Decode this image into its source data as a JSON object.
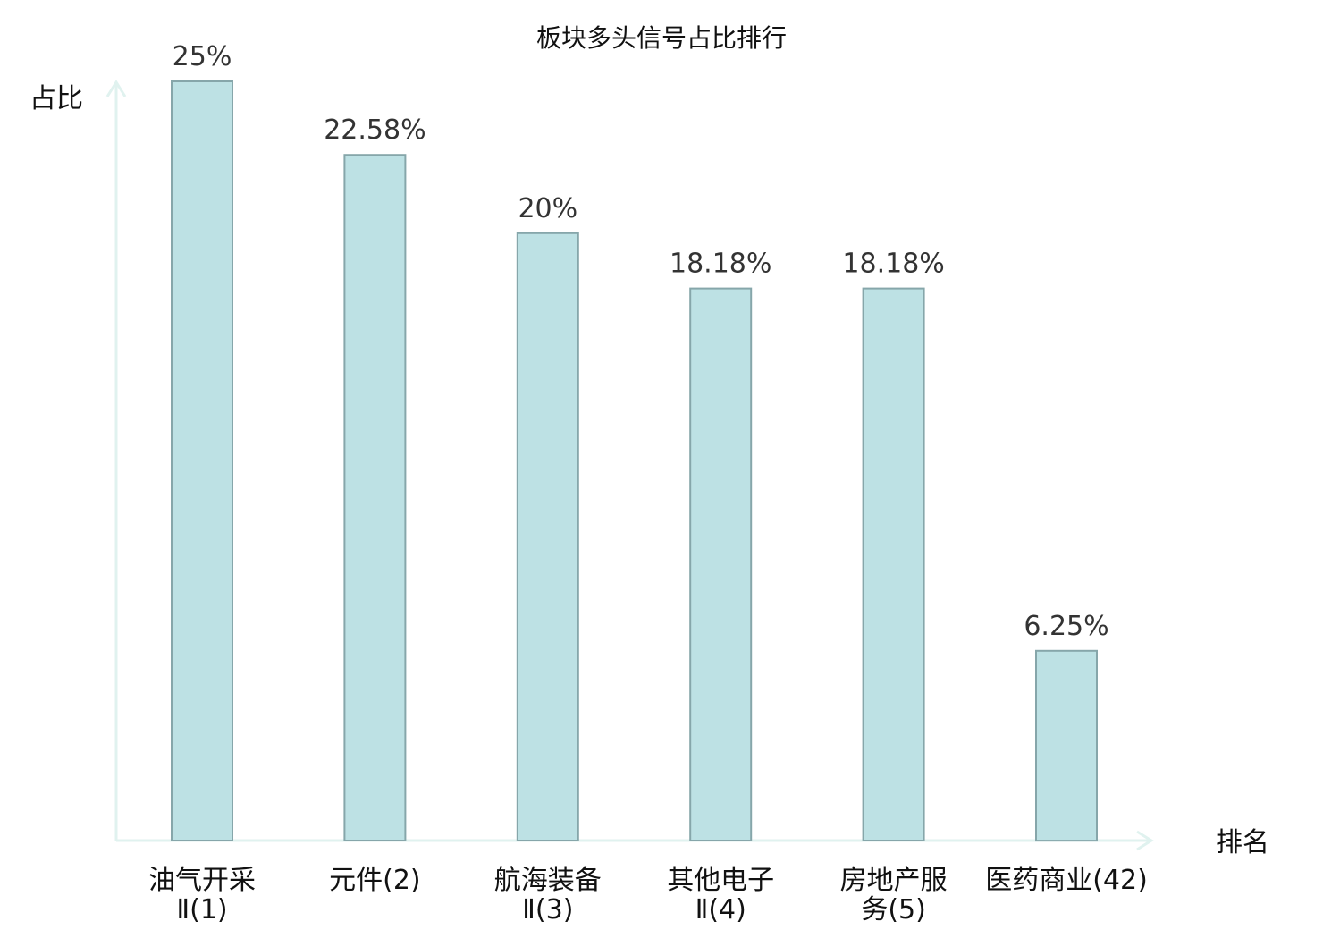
{
  "chart_data": {
    "type": "bar",
    "title": "板块多头信号占比排行",
    "ylabel": "占比",
    "xlabel": "排名",
    "categories": [
      [
        "油气开采",
        "Ⅱ(1)"
      ],
      [
        "元件(2)"
      ],
      [
        "航海装备",
        "Ⅱ(3)"
      ],
      [
        "其他电子",
        "Ⅱ(4)"
      ],
      [
        "房地产服",
        "务(5)"
      ],
      [
        "医药商业(42)"
      ]
    ],
    "values": [
      25,
      22.58,
      20,
      18.18,
      18.18,
      6.25
    ],
    "value_labels": [
      "25%",
      "22.58%",
      "20%",
      "18.18%",
      "18.18%",
      "6.25%"
    ],
    "highlight_index": 5,
    "ylim": [
      0,
      25
    ],
    "grid": false,
    "colors": {
      "bar_fill": "#bde1e4",
      "bar_stroke": "#86a6aa",
      "axis": "#e0f2ef",
      "highlight_text": "#e31a1c",
      "text": "#111111",
      "value_text": "#333333"
    }
  }
}
